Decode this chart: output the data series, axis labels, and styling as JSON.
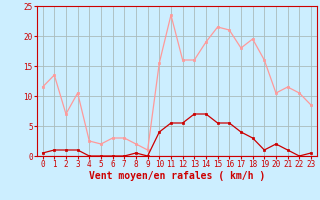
{
  "x": [
    0,
    1,
    2,
    3,
    4,
    5,
    6,
    7,
    8,
    9,
    10,
    11,
    12,
    13,
    14,
    15,
    16,
    17,
    18,
    19,
    20,
    21,
    22,
    23
  ],
  "wind_avg": [
    0.5,
    1.0,
    1.0,
    1.0,
    0,
    0,
    0,
    0,
    0.5,
    0,
    4.0,
    5.5,
    5.5,
    7.0,
    7.0,
    5.5,
    5.5,
    4.0,
    3.0,
    1.0,
    2.0,
    1.0,
    0,
    0.5
  ],
  "wind_gust": [
    11.5,
    13.5,
    7.0,
    10.5,
    2.5,
    2.0,
    3.0,
    3.0,
    2.0,
    1.0,
    15.5,
    23.5,
    16.0,
    16.0,
    19.0,
    21.5,
    21.0,
    18.0,
    19.5,
    16.0,
    10.5,
    11.5,
    10.5,
    8.5
  ],
  "color_avg": "#cc0000",
  "color_gust": "#ff9999",
  "bg_color": "#cceeff",
  "grid_color": "#aabbbb",
  "xlabel": "Vent moyen/en rafales ( km/h )",
  "ylim": [
    0,
    25
  ],
  "xlim": [
    -0.5,
    23.5
  ],
  "yticks": [
    0,
    5,
    10,
    15,
    20,
    25
  ],
  "xticks": [
    0,
    1,
    2,
    3,
    4,
    5,
    6,
    7,
    8,
    9,
    10,
    11,
    12,
    13,
    14,
    15,
    16,
    17,
    18,
    19,
    20,
    21,
    22,
    23
  ],
  "tick_fontsize": 5.5,
  "xlabel_fontsize": 7.0,
  "linewidth": 0.9,
  "markersize": 2.0
}
